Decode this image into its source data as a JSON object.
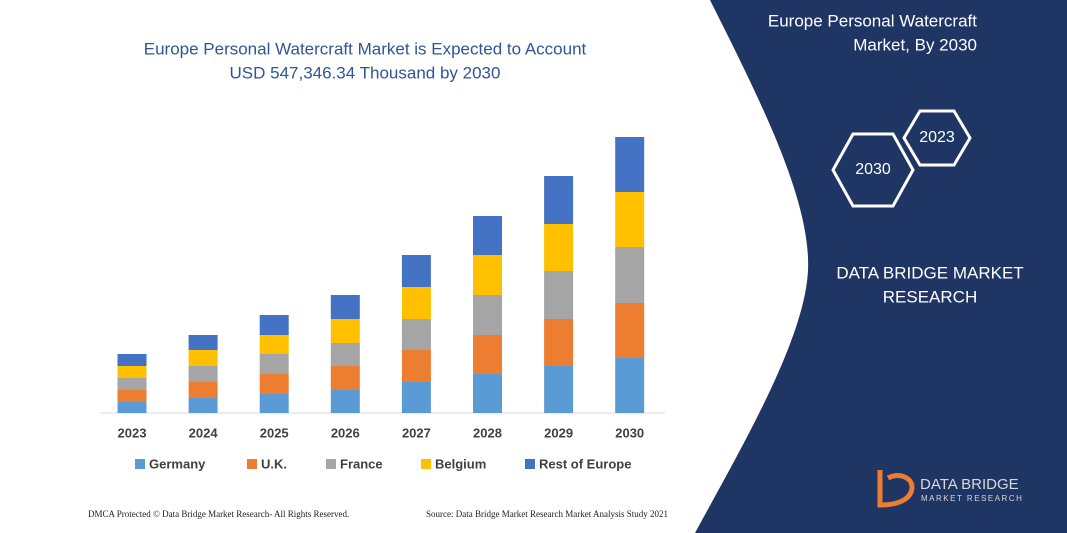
{
  "chart_data": {
    "type": "bar",
    "stacked": true,
    "title": [
      "Europe Personal Watercraft Market is Expected to Account",
      "USD 547,346.34 Thousand by 2030"
    ],
    "categories": [
      "2023",
      "2024",
      "2025",
      "2026",
      "2027",
      "2028",
      "2029",
      "2030"
    ],
    "series": [
      {
        "name": "Germany",
        "color": "#5b9bd5",
        "values": [
          11,
          15,
          19,
          23,
          31,
          39,
          47,
          55
        ]
      },
      {
        "name": "U.K.",
        "color": "#ed7d31",
        "values": [
          12,
          16,
          20,
          24,
          32,
          39,
          47,
          55
        ]
      },
      {
        "name": "France",
        "color": "#a5a5a5",
        "values": [
          12,
          16,
          20,
          23,
          31,
          40,
          48,
          56
        ]
      },
      {
        "name": "Belgium",
        "color": "#ffc000",
        "values": [
          12,
          16,
          19,
          24,
          32,
          40,
          47,
          55
        ]
      },
      {
        "name": "Rest of Europe",
        "color": "#4472c4",
        "values": [
          12,
          15,
          20,
          24,
          32,
          39,
          48,
          55
        ]
      }
    ]
  },
  "panel": {
    "title": [
      "Europe Personal Watercraft",
      "Market, By 2030"
    ],
    "hexagons": [
      "2030",
      "2023"
    ],
    "company": [
      "DATA BRIDGE MARKET",
      "RESEARCH"
    ]
  },
  "logo": {
    "name": "DATA BRIDGE",
    "tagline": "MARKET RESEARCH"
  },
  "footer": {
    "left": "DMCA Protected © Data Bridge Market Research- All Rights Reserved.",
    "right": "Source: Data Bridge Market Research Market Analysis Study 2021"
  }
}
